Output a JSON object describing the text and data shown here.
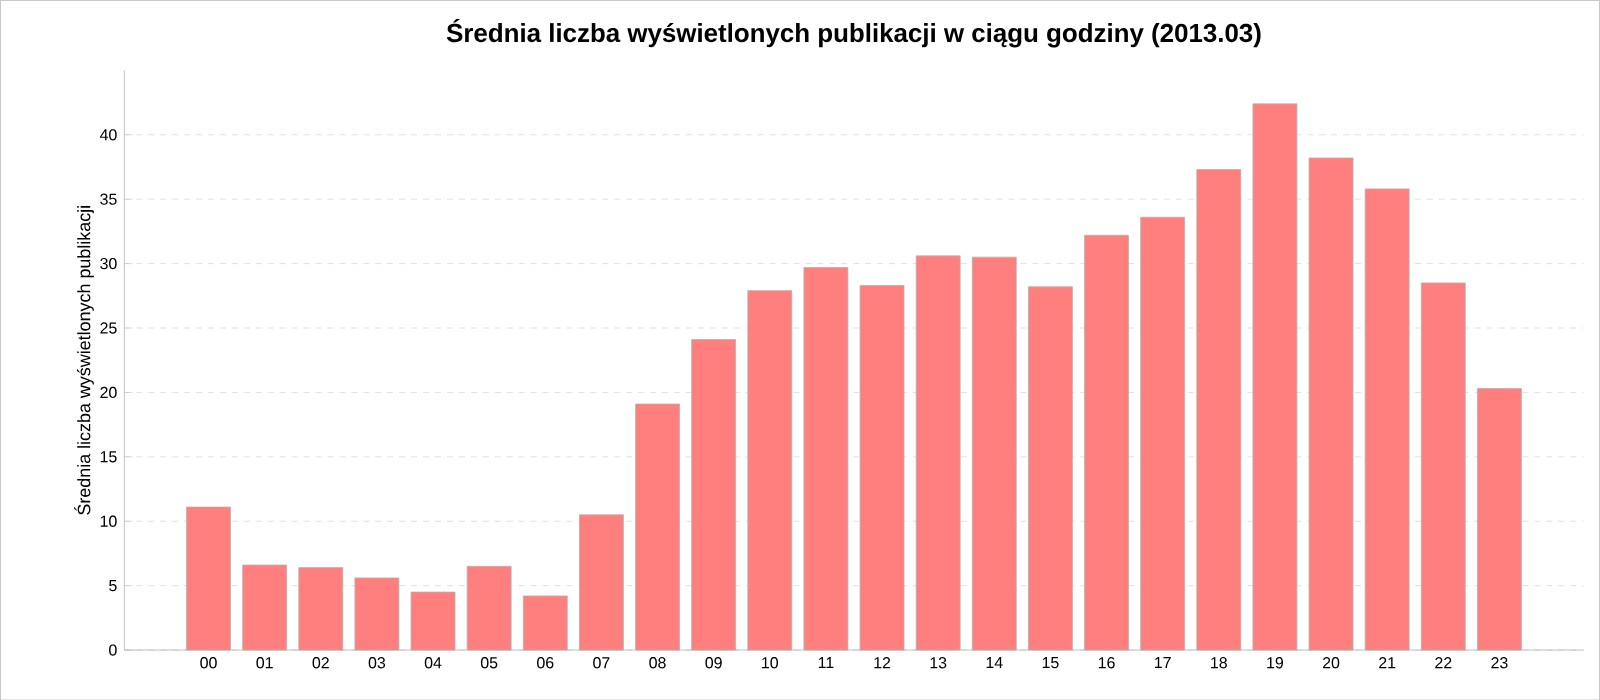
{
  "chart_data": {
    "type": "bar",
    "title": "Średnia liczba wyświetlonych publikacji w ciągu godziny (2013.03)",
    "ylabel": "Średnia liczba wyświetlonych publikacji",
    "categories": [
      "00",
      "01",
      "02",
      "03",
      "04",
      "05",
      "06",
      "07",
      "08",
      "09",
      "10",
      "11",
      "12",
      "13",
      "14",
      "15",
      "16",
      "17",
      "18",
      "19",
      "20",
      "21",
      "22",
      "23"
    ],
    "values": [
      11.1,
      6.6,
      6.4,
      5.6,
      4.5,
      6.5,
      4.2,
      10.5,
      19.1,
      24.1,
      27.9,
      29.7,
      28.3,
      30.6,
      30.5,
      28.2,
      32.2,
      33.6,
      37.3,
      42.4,
      38.2,
      35.8,
      28.5,
      20.3
    ],
    "color": "#ff7f7f",
    "ylim": [
      0,
      45
    ],
    "yticks": [
      0,
      5,
      10,
      15,
      20,
      25,
      30,
      35,
      40
    ],
    "grid": "y"
  }
}
